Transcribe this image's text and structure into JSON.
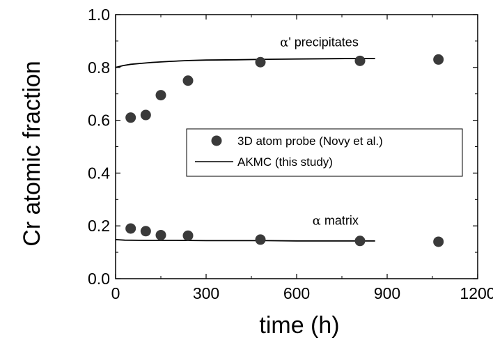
{
  "chart_data": {
    "type": "scatter",
    "xlabel": "time (h)",
    "ylabel": "Cr atomic fraction",
    "xlim": [
      0,
      1200
    ],
    "ylim": [
      0.0,
      1.0
    ],
    "x_ticks": [
      "0",
      "300",
      "600",
      "900",
      "1200"
    ],
    "y_ticks": [
      "0.0",
      "0.2",
      "0.4",
      "0.6",
      "0.8",
      "1.0"
    ],
    "grid": false,
    "legend_position": "center-right",
    "series": [
      {
        "name": "3D atom probe (Novy et al.)",
        "kind": "scatter",
        "marker": "filled-circle",
        "color": "#3a3a3a",
        "points": [
          {
            "x": 50,
            "y": 0.61
          },
          {
            "x": 100,
            "y": 0.62
          },
          {
            "x": 150,
            "y": 0.695
          },
          {
            "x": 240,
            "y": 0.75
          },
          {
            "x": 480,
            "y": 0.82
          },
          {
            "x": 810,
            "y": 0.825
          },
          {
            "x": 1070,
            "y": 0.83
          },
          {
            "x": 50,
            "y": 0.19
          },
          {
            "x": 100,
            "y": 0.18
          },
          {
            "x": 150,
            "y": 0.165
          },
          {
            "x": 240,
            "y": 0.163
          },
          {
            "x": 480,
            "y": 0.148
          },
          {
            "x": 810,
            "y": 0.143
          },
          {
            "x": 1070,
            "y": 0.14
          }
        ]
      },
      {
        "name": "AKMC (this study)",
        "kind": "line",
        "color": "#000000",
        "segments": [
          [
            {
              "x": 0,
              "y": 0.8
            },
            {
              "x": 10,
              "y": 0.803
            },
            {
              "x": 25,
              "y": 0.807
            },
            {
              "x": 50,
              "y": 0.812
            },
            {
              "x": 80,
              "y": 0.815
            },
            {
              "x": 120,
              "y": 0.819
            },
            {
              "x": 180,
              "y": 0.823
            },
            {
              "x": 240,
              "y": 0.826
            },
            {
              "x": 300,
              "y": 0.828
            },
            {
              "x": 400,
              "y": 0.829
            },
            {
              "x": 500,
              "y": 0.831
            },
            {
              "x": 600,
              "y": 0.832
            },
            {
              "x": 700,
              "y": 0.833
            },
            {
              "x": 800,
              "y": 0.834
            },
            {
              "x": 860,
              "y": 0.834
            }
          ],
          [
            {
              "x": 0,
              "y": 0.148
            },
            {
              "x": 30,
              "y": 0.146
            },
            {
              "x": 100,
              "y": 0.145
            },
            {
              "x": 200,
              "y": 0.145
            },
            {
              "x": 300,
              "y": 0.144
            },
            {
              "x": 400,
              "y": 0.144
            },
            {
              "x": 500,
              "y": 0.144
            },
            {
              "x": 600,
              "y": 0.143
            },
            {
              "x": 700,
              "y": 0.143
            },
            {
              "x": 800,
              "y": 0.143
            },
            {
              "x": 860,
              "y": 0.143
            }
          ]
        ]
      }
    ],
    "annotations": [
      {
        "greek": "α",
        "text": "' precipitates",
        "x": 805,
        "y": 0.88
      },
      {
        "greek": "α",
        "text": " matrix",
        "x": 805,
        "y": 0.205
      }
    ]
  }
}
